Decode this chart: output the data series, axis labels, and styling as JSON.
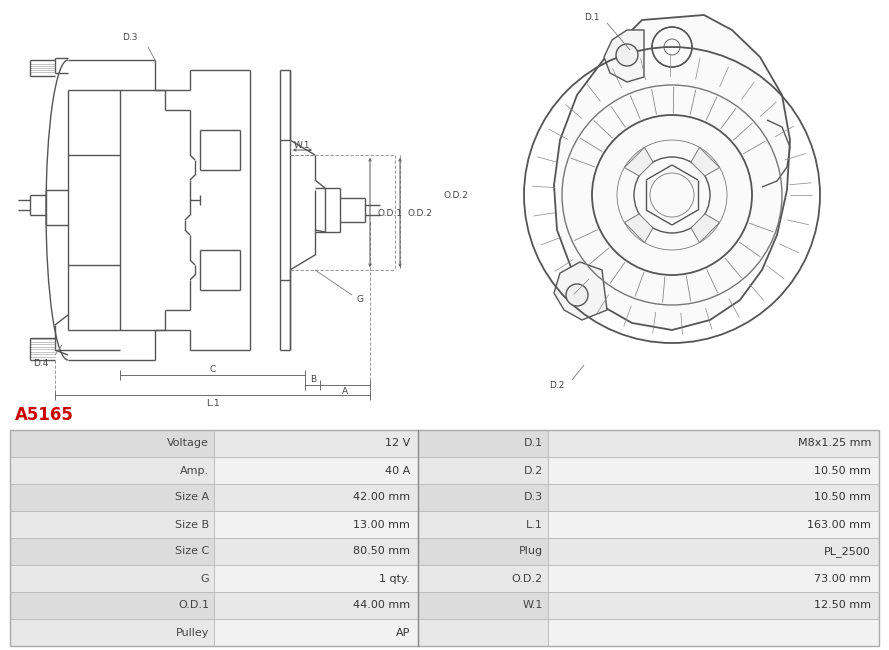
{
  "title": "A5165",
  "title_color": "#cc0000",
  "bg_color": "#ffffff",
  "table_rows": [
    [
      "Voltage",
      "12 V",
      "D.1",
      "M8x1.25 mm"
    ],
    [
      "Amp.",
      "40 A",
      "D.2",
      "10.50 mm"
    ],
    [
      "Size A",
      "42.00 mm",
      "D.3",
      "10.50 mm"
    ],
    [
      "Size B",
      "13.00 mm",
      "L.1",
      "163.00 mm"
    ],
    [
      "Size C",
      "80.50 mm",
      "Plug",
      "PL_2500"
    ],
    [
      "G",
      "1 qty.",
      "O.D.2",
      "73.00 mm"
    ],
    [
      "O.D.1",
      "44.00 mm",
      "W.1",
      "12.50 mm"
    ],
    [
      "Pulley",
      "AP",
      "",
      ""
    ]
  ]
}
